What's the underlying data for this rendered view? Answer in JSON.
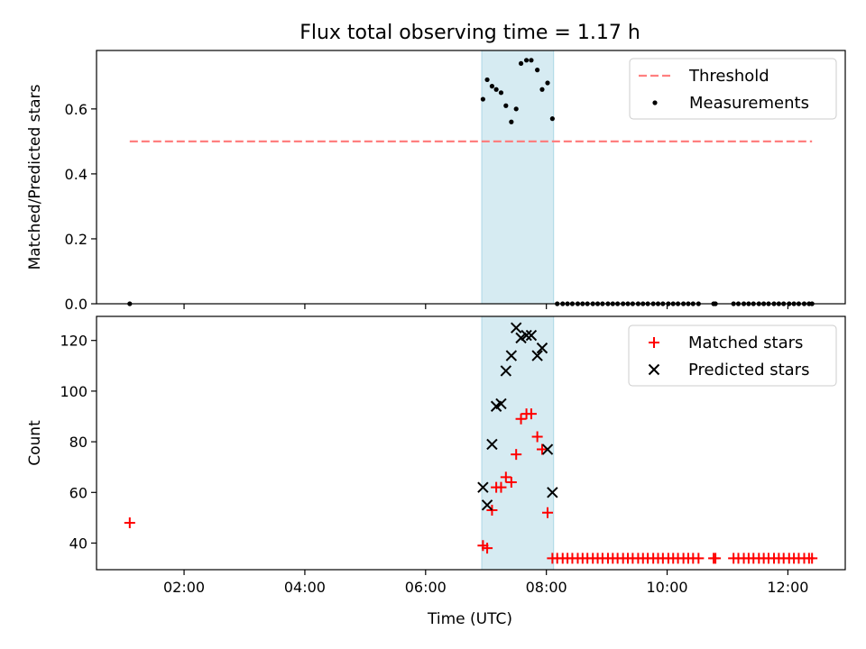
{
  "chart_data": {
    "title": "Flux total observing time = 1.17 h",
    "xlabel": "Time (UTC)",
    "x_unit": "hours UTC",
    "xlim": [
      0.55,
      12.95
    ],
    "xticks": [
      {
        "value": 2,
        "label": "02:00"
      },
      {
        "value": 4,
        "label": "04:00"
      },
      {
        "value": 6,
        "label": "06:00"
      },
      {
        "value": 8,
        "label": "08:00"
      },
      {
        "value": 10,
        "label": "10:00"
      },
      {
        "value": 12,
        "label": "12:00"
      }
    ],
    "shaded_span": {
      "x_start": 6.93,
      "x_end": 8.12,
      "color": "#add8e6"
    },
    "panels": [
      {
        "type": "scatter",
        "ylabel": "Matched/Predicted stars",
        "ylim": [
          0.0,
          0.78
        ],
        "yticks": [
          {
            "value": 0.0,
            "label": "0.0"
          },
          {
            "value": 0.2,
            "label": "0.2"
          },
          {
            "value": 0.4,
            "label": "0.4"
          },
          {
            "value": 0.6,
            "label": "0.6"
          }
        ],
        "legend": {
          "position": "upper right"
        },
        "series": [
          {
            "name": "Threshold",
            "kind": "dashed-line",
            "color": "#ff7f7f",
            "x": [
              1.1,
              12.4
            ],
            "y": [
              0.5,
              0.5
            ]
          },
          {
            "name": "Measurements",
            "kind": "dot",
            "color": "#000000",
            "x": [
              1.1,
              6.95,
              7.02,
              7.1,
              7.17,
              7.25,
              7.33,
              7.42,
              7.5,
              7.58,
              7.67,
              7.75,
              7.85,
              7.93,
              8.02,
              8.1,
              8.18,
              8.27,
              8.35,
              8.43,
              8.52,
              8.6,
              8.68,
              8.77,
              8.85,
              8.93,
              9.02,
              9.1,
              9.18,
              9.27,
              9.35,
              9.43,
              9.52,
              9.6,
              9.68,
              9.77,
              9.85,
              9.93,
              10.02,
              10.1,
              10.18,
              10.27,
              10.35,
              10.43,
              10.52,
              10.77,
              10.8,
              11.1,
              11.18,
              11.27,
              11.35,
              11.43,
              11.52,
              11.6,
              11.68,
              11.77,
              11.85,
              11.93,
              12.02,
              12.1,
              12.18,
              12.27,
              12.35,
              12.4
            ],
            "y": [
              0.0,
              0.63,
              0.69,
              0.67,
              0.66,
              0.65,
              0.61,
              0.56,
              0.6,
              0.74,
              0.75,
              0.75,
              0.72,
              0.66,
              0.68,
              0.57,
              0.0,
              0.0,
              0.0,
              0.0,
              0.0,
              0.0,
              0.0,
              0.0,
              0.0,
              0.0,
              0.0,
              0.0,
              0.0,
              0.0,
              0.0,
              0.0,
              0.0,
              0.0,
              0.0,
              0.0,
              0.0,
              0.0,
              0.0,
              0.0,
              0.0,
              0.0,
              0.0,
              0.0,
              0.0,
              0.0,
              0.0,
              0.0,
              0.0,
              0.0,
              0.0,
              0.0,
              0.0,
              0.0,
              0.0,
              0.0,
              0.0,
              0.0,
              0.0,
              0.0,
              0.0,
              0.0,
              0.0,
              0.0
            ]
          }
        ]
      },
      {
        "type": "scatter",
        "ylabel": "Count",
        "ylim": [
          29.5,
          129.5
        ],
        "yticks": [
          {
            "value": 40,
            "label": "40"
          },
          {
            "value": 60,
            "label": "60"
          },
          {
            "value": 80,
            "label": "80"
          },
          {
            "value": 100,
            "label": "100"
          },
          {
            "value": 120,
            "label": "120"
          }
        ],
        "legend": {
          "position": "upper right"
        },
        "series": [
          {
            "name": "Matched stars",
            "kind": "plus",
            "color": "#ff0000",
            "x": [
              1.1,
              6.95,
              7.02,
              7.1,
              7.17,
              7.25,
              7.33,
              7.42,
              7.5,
              7.58,
              7.67,
              7.75,
              7.85,
              7.93,
              8.02,
              8.1,
              8.18,
              8.27,
              8.35,
              8.43,
              8.52,
              8.6,
              8.68,
              8.77,
              8.85,
              8.93,
              9.02,
              9.1,
              9.18,
              9.27,
              9.35,
              9.43,
              9.52,
              9.6,
              9.68,
              9.77,
              9.85,
              9.93,
              10.02,
              10.1,
              10.18,
              10.27,
              10.35,
              10.43,
              10.52,
              10.77,
              10.8,
              11.1,
              11.18,
              11.27,
              11.35,
              11.43,
              11.52,
              11.6,
              11.68,
              11.77,
              11.85,
              11.93,
              12.02,
              12.1,
              12.18,
              12.27,
              12.35,
              12.4
            ],
            "y": [
              48,
              39,
              38,
              53,
              62,
              62,
              66,
              64,
              75,
              89,
              91,
              91,
              82,
              77,
              52,
              34,
              34,
              34,
              34,
              34,
              34,
              34,
              34,
              34,
              34,
              34,
              34,
              34,
              34,
              34,
              34,
              34,
              34,
              34,
              34,
              34,
              34,
              34,
              34,
              34,
              34,
              34,
              34,
              34,
              34,
              34,
              34,
              34,
              34,
              34,
              34,
              34,
              34,
              34,
              34,
              34,
              34,
              34,
              34,
              34,
              34,
              34,
              34,
              34
            ]
          },
          {
            "name": "Predicted stars",
            "kind": "cross",
            "color": "#000000",
            "x": [
              6.95,
              7.02,
              7.1,
              7.17,
              7.25,
              7.33,
              7.42,
              7.5,
              7.58,
              7.67,
              7.75,
              7.85,
              7.93,
              8.02,
              8.1
            ],
            "y": [
              62,
              55,
              79,
              94,
              95,
              108,
              114,
              125,
              121,
              122,
              122,
              114,
              117,
              77,
              60
            ]
          }
        ]
      }
    ]
  }
}
